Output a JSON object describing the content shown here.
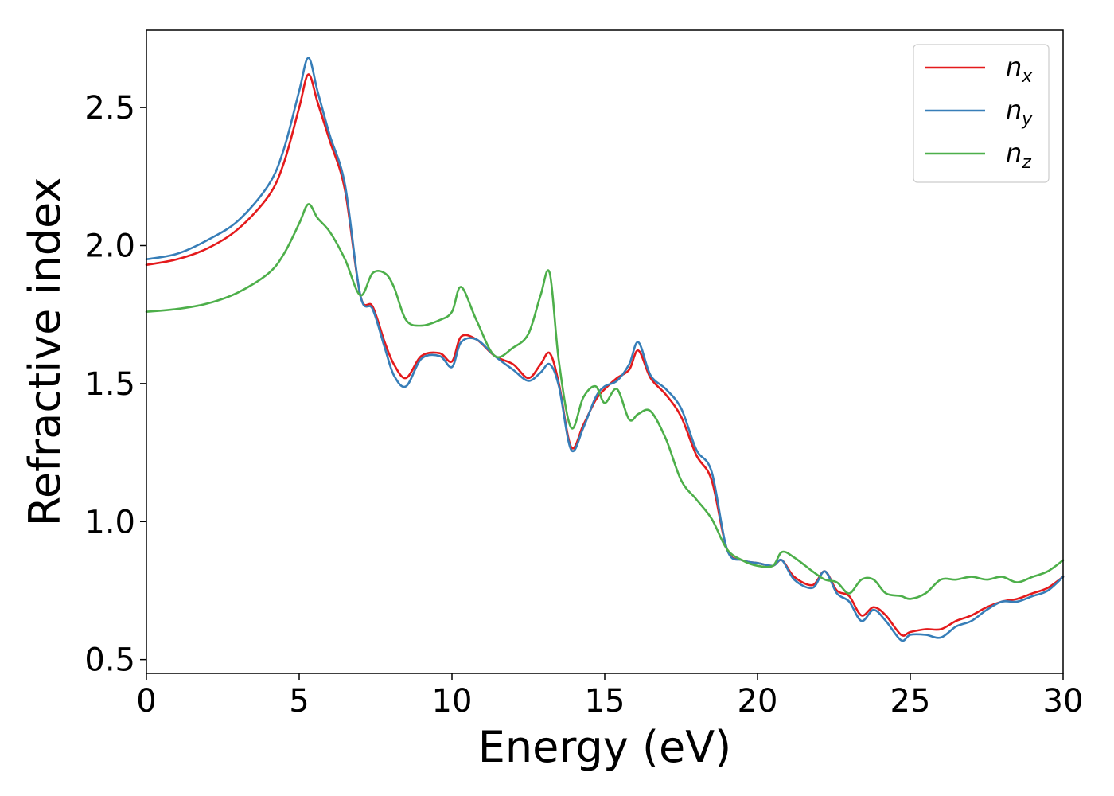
{
  "chart_data": {
    "type": "line",
    "title": "",
    "xlabel": "Energy (eV)",
    "ylabel": "Refractive index",
    "xlim": [
      0,
      30
    ],
    "ylim": [
      0.45,
      2.78
    ],
    "xticks": [
      0,
      5,
      10,
      15,
      20,
      25,
      30
    ],
    "xtick_labels": [
      "0",
      "5",
      "10",
      "15",
      "20",
      "25",
      "30"
    ],
    "yticks": [
      0.5,
      1.0,
      1.5,
      2.0,
      2.5
    ],
    "ytick_labels": [
      "0.5",
      "1.0",
      "1.5",
      "2.0",
      "2.5"
    ],
    "grid": false,
    "legend_position": "top-right",
    "series": [
      {
        "name": "n_x",
        "label_base": "n",
        "label_sub": "x",
        "color": "#e41a1c",
        "x": [
          0,
          1,
          2,
          3,
          4,
          4.5,
          5,
          5.3,
          5.6,
          6,
          6.5,
          7,
          7.4,
          7.8,
          8.1,
          8.5,
          9,
          9.6,
          10,
          10.3,
          10.8,
          11.4,
          12,
          12.5,
          12.9,
          13.2,
          13.5,
          13.9,
          14.3,
          14.7,
          15,
          15.4,
          15.8,
          16.1,
          16.5,
          17,
          17.5,
          18,
          18.5,
          19,
          19.5,
          20,
          20.5,
          20.8,
          21.2,
          21.8,
          22.2,
          22.6,
          23,
          23.4,
          23.8,
          24.2,
          24.7,
          25,
          25.5,
          26,
          26.5,
          27,
          27.5,
          28,
          28.5,
          29,
          29.5,
          30
        ],
        "y": [
          1.93,
          1.95,
          1.99,
          2.06,
          2.18,
          2.3,
          2.5,
          2.62,
          2.52,
          2.38,
          2.2,
          1.82,
          1.78,
          1.65,
          1.57,
          1.52,
          1.6,
          1.61,
          1.58,
          1.67,
          1.66,
          1.6,
          1.57,
          1.52,
          1.57,
          1.61,
          1.5,
          1.27,
          1.35,
          1.44,
          1.48,
          1.52,
          1.55,
          1.62,
          1.52,
          1.46,
          1.38,
          1.24,
          1.15,
          0.9,
          0.86,
          0.85,
          0.84,
          0.86,
          0.8,
          0.77,
          0.82,
          0.75,
          0.73,
          0.66,
          0.69,
          0.66,
          0.59,
          0.6,
          0.61,
          0.61,
          0.64,
          0.66,
          0.69,
          0.71,
          0.72,
          0.74,
          0.76,
          0.8
        ]
      },
      {
        "name": "n_y",
        "label_base": "n",
        "label_sub": "y",
        "color": "#377eb8",
        "x": [
          0,
          1,
          2,
          3,
          4,
          4.5,
          5,
          5.3,
          5.6,
          6,
          6.5,
          7,
          7.4,
          7.8,
          8.1,
          8.5,
          9,
          9.6,
          10,
          10.3,
          10.8,
          11.4,
          12,
          12.5,
          12.9,
          13.2,
          13.5,
          13.9,
          14.3,
          14.7,
          15,
          15.4,
          15.8,
          16.1,
          16.5,
          17,
          17.5,
          18,
          18.5,
          19,
          19.5,
          20,
          20.5,
          20.8,
          21.2,
          21.8,
          22.2,
          22.6,
          23,
          23.4,
          23.8,
          24.2,
          24.7,
          25,
          25.5,
          26,
          26.5,
          27,
          27.5,
          28,
          28.5,
          29,
          29.5,
          30
        ],
        "y": [
          1.95,
          1.97,
          2.02,
          2.09,
          2.22,
          2.35,
          2.56,
          2.68,
          2.56,
          2.4,
          2.22,
          1.82,
          1.77,
          1.63,
          1.53,
          1.49,
          1.59,
          1.6,
          1.56,
          1.65,
          1.66,
          1.6,
          1.55,
          1.51,
          1.54,
          1.57,
          1.49,
          1.26,
          1.34,
          1.45,
          1.49,
          1.51,
          1.57,
          1.65,
          1.53,
          1.48,
          1.41,
          1.26,
          1.18,
          0.9,
          0.86,
          0.85,
          0.84,
          0.86,
          0.79,
          0.76,
          0.82,
          0.74,
          0.71,
          0.64,
          0.68,
          0.64,
          0.57,
          0.59,
          0.59,
          0.58,
          0.62,
          0.64,
          0.68,
          0.71,
          0.71,
          0.73,
          0.75,
          0.8
        ]
      },
      {
        "name": "n_z",
        "label_base": "n",
        "label_sub": "z",
        "color": "#4daf4a",
        "x": [
          0,
          1,
          2,
          3,
          4,
          4.5,
          5,
          5.3,
          5.6,
          6,
          6.5,
          7,
          7.4,
          7.8,
          8.1,
          8.5,
          9,
          9.6,
          10,
          10.3,
          10.8,
          11.4,
          12,
          12.5,
          12.9,
          13.2,
          13.5,
          13.9,
          14.3,
          14.7,
          15,
          15.4,
          15.8,
          16.1,
          16.5,
          17,
          17.5,
          18,
          18.5,
          19,
          19.5,
          20,
          20.5,
          20.8,
          21.2,
          21.8,
          22.2,
          22.6,
          23,
          23.4,
          23.8,
          24.2,
          24.7,
          25,
          25.5,
          26,
          26.5,
          27,
          27.5,
          28,
          28.5,
          29,
          29.5,
          30
        ],
        "y": [
          1.76,
          1.77,
          1.79,
          1.83,
          1.9,
          1.97,
          2.08,
          2.15,
          2.1,
          2.05,
          1.95,
          1.82,
          1.9,
          1.9,
          1.85,
          1.73,
          1.71,
          1.73,
          1.76,
          1.85,
          1.73,
          1.6,
          1.63,
          1.68,
          1.82,
          1.9,
          1.58,
          1.34,
          1.45,
          1.49,
          1.43,
          1.48,
          1.37,
          1.39,
          1.4,
          1.3,
          1.15,
          1.08,
          1.01,
          0.9,
          0.86,
          0.84,
          0.84,
          0.89,
          0.87,
          0.82,
          0.79,
          0.78,
          0.74,
          0.79,
          0.79,
          0.74,
          0.73,
          0.72,
          0.74,
          0.79,
          0.79,
          0.8,
          0.79,
          0.8,
          0.78,
          0.8,
          0.82,
          0.86
        ]
      }
    ]
  }
}
